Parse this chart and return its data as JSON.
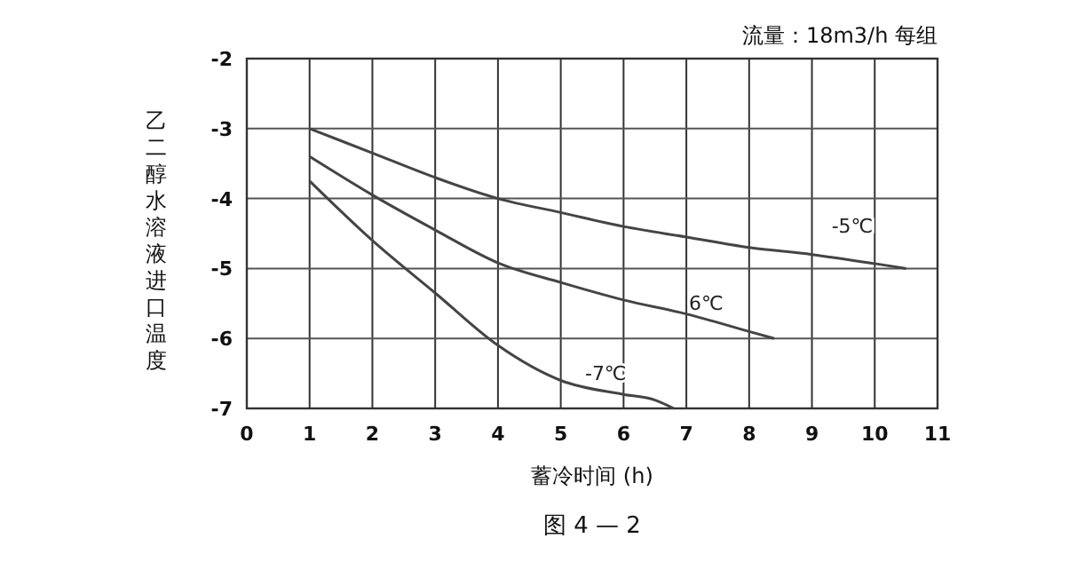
{
  "chart_data": {
    "type": "line",
    "title": "流量：18m3/h  每组",
    "xlabel": "蓄冷时间 (h)",
    "ylabel": "乙二醇水溶液进口温度",
    "annotations": [
      "图 4 — 2"
    ],
    "xlim": [
      0,
      11
    ],
    "xticks": [
      0,
      1,
      2,
      3,
      4,
      5,
      6,
      7,
      8,
      9,
      10,
      11
    ],
    "ylim": [
      -7,
      -2
    ],
    "yticks": [
      -7,
      -6,
      -5,
      -4,
      -3,
      -2
    ],
    "grid": true,
    "marker": "none",
    "line_style": "solid",
    "series": [
      {
        "name": "-5℃",
        "color": "#444444",
        "x": [
          1,
          2,
          3,
          4,
          5,
          6,
          7,
          8,
          9,
          10,
          10.5
        ],
        "values": [
          -3,
          -3.35,
          -3.7,
          -4,
          -4.2,
          -4.4,
          -4.55,
          -4.7,
          -4.8,
          -4.93,
          -5
        ]
      },
      {
        "name": "6℃",
        "color": "#444444",
        "x": [
          1,
          2,
          3,
          4,
          5,
          6,
          7,
          8,
          8.4
        ],
        "values": [
          -3.4,
          -3.95,
          -4.45,
          -4.92,
          -5.2,
          -5.45,
          -5.65,
          -5.9,
          -6
        ]
      },
      {
        "name": "-7℃",
        "color": "#444444",
        "x": [
          1,
          2,
          3,
          4,
          5,
          6,
          6.5,
          6.8
        ],
        "values": [
          -3.75,
          -4.6,
          -5.35,
          -6.1,
          -6.6,
          -6.8,
          -6.88,
          -7
        ]
      }
    ]
  }
}
